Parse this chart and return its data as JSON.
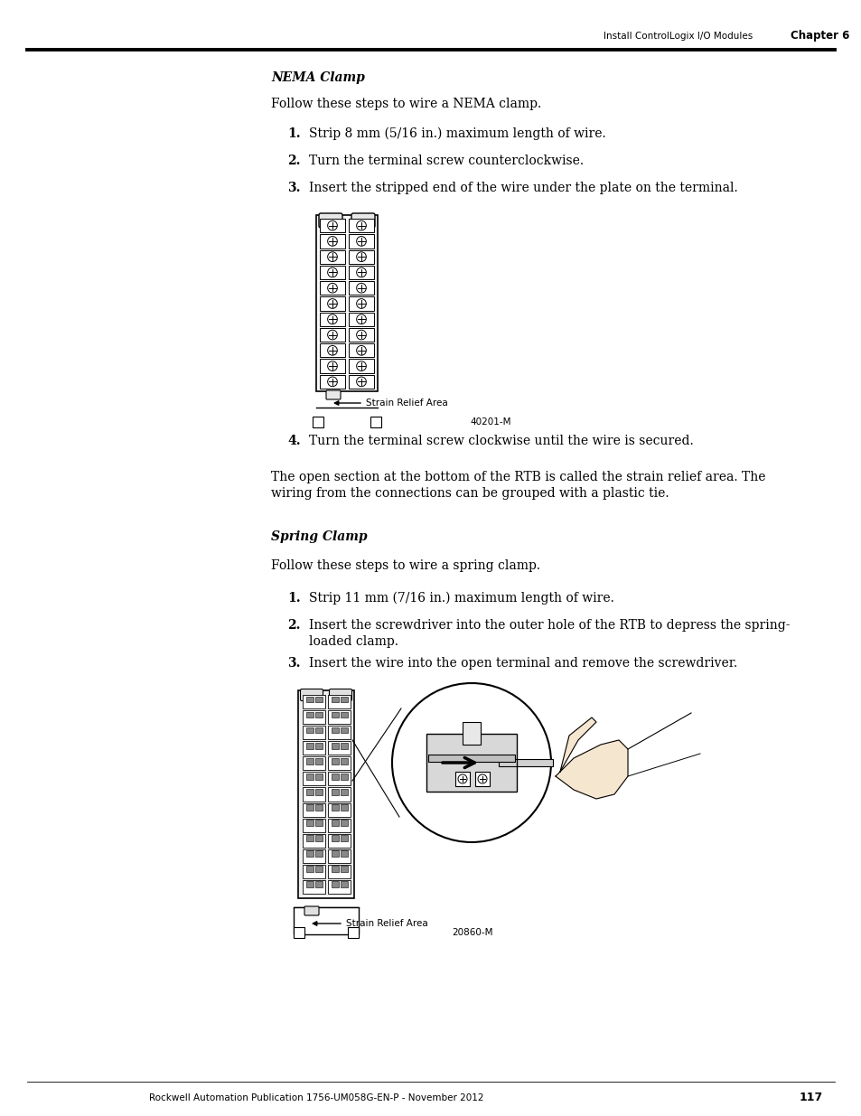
{
  "page_bg": "#ffffff",
  "header_right_text": "Install ControlLogix I/O Modules",
  "header_chapter": "Chapter 6",
  "footer_text": "Rockwell Automation Publication 1756-UM058G-EN-P - November 2012",
  "footer_page": "117",
  "section1_title": "NEMA Clamp",
  "section1_intro": "Follow these steps to wire a NEMA clamp.",
  "nema_steps": [
    "Strip 8 mm (5/16 in.) maximum length of wire.",
    "Turn the terminal screw counterclockwise.",
    "Insert the stripped end of the wire under the plate on the terminal."
  ],
  "nema_step4": "Turn the terminal screw clockwise until the wire is secured.",
  "nema_image_caption": "Strain Relief Area",
  "nema_image_code": "40201-M",
  "nema_closing_line1": "The open section at the bottom of the RTB is called the strain relief area. The",
  "nema_closing_line2": "wiring from the connections can be grouped with a plastic tie.",
  "section2_title": "Spring Clamp",
  "section2_intro": "Follow these steps to wire a spring clamp.",
  "spring_steps_line1": [
    "Strip 11 mm (7/16 in.) maximum length of wire.",
    "Insert the screwdriver into the outer hole of the RTB to depress the spring-",
    "Insert the wire into the open terminal and remove the screwdriver."
  ],
  "spring_step2_line2": "loaded clamp.",
  "spring_image_caption": "Strain Relief Area",
  "spring_image_code": "20860-M",
  "text_color": "#000000",
  "line_color": "#000000"
}
